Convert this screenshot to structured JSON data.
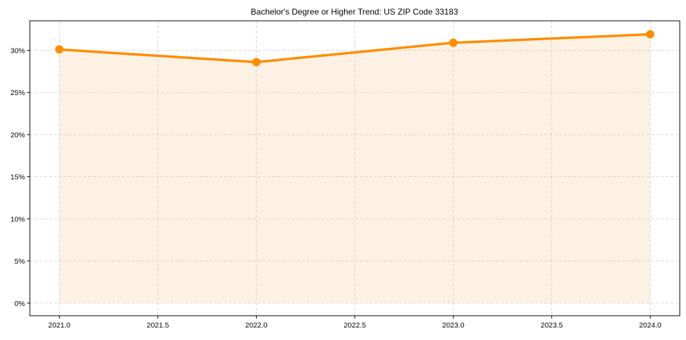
{
  "chart_data": {
    "type": "line",
    "title": "Bachelor's Degree or Higher Trend: US ZIP Code 33183",
    "xlabel": "",
    "ylabel": "",
    "x": [
      2021,
      2022,
      2023,
      2024
    ],
    "series": [
      {
        "name": "Bachelor's Degree or Higher",
        "values": [
          30.1,
          28.6,
          30.9,
          31.9
        ],
        "unit": "%"
      }
    ],
    "xticks": [
      "2021.0",
      "2021.5",
      "2022.0",
      "2022.5",
      "2023.0",
      "2023.5",
      "2024.0"
    ],
    "xtick_values": [
      2021.0,
      2021.5,
      2022.0,
      2022.5,
      2023.0,
      2023.5,
      2024.0
    ],
    "yticks": [
      "0%",
      "5%",
      "10%",
      "15%",
      "20%",
      "25%",
      "30%"
    ],
    "ytick_values": [
      0,
      5,
      10,
      15,
      20,
      25,
      30
    ],
    "xlim": [
      2020.85,
      2024.15
    ],
    "ylim": [
      -1.5,
      33.5
    ],
    "grid": true,
    "fill_under": true,
    "legend": null,
    "colors": {
      "line": "#ff8c00",
      "fill": "#fdf1e4",
      "grid": "#cccccc",
      "axis": "#000000"
    }
  }
}
